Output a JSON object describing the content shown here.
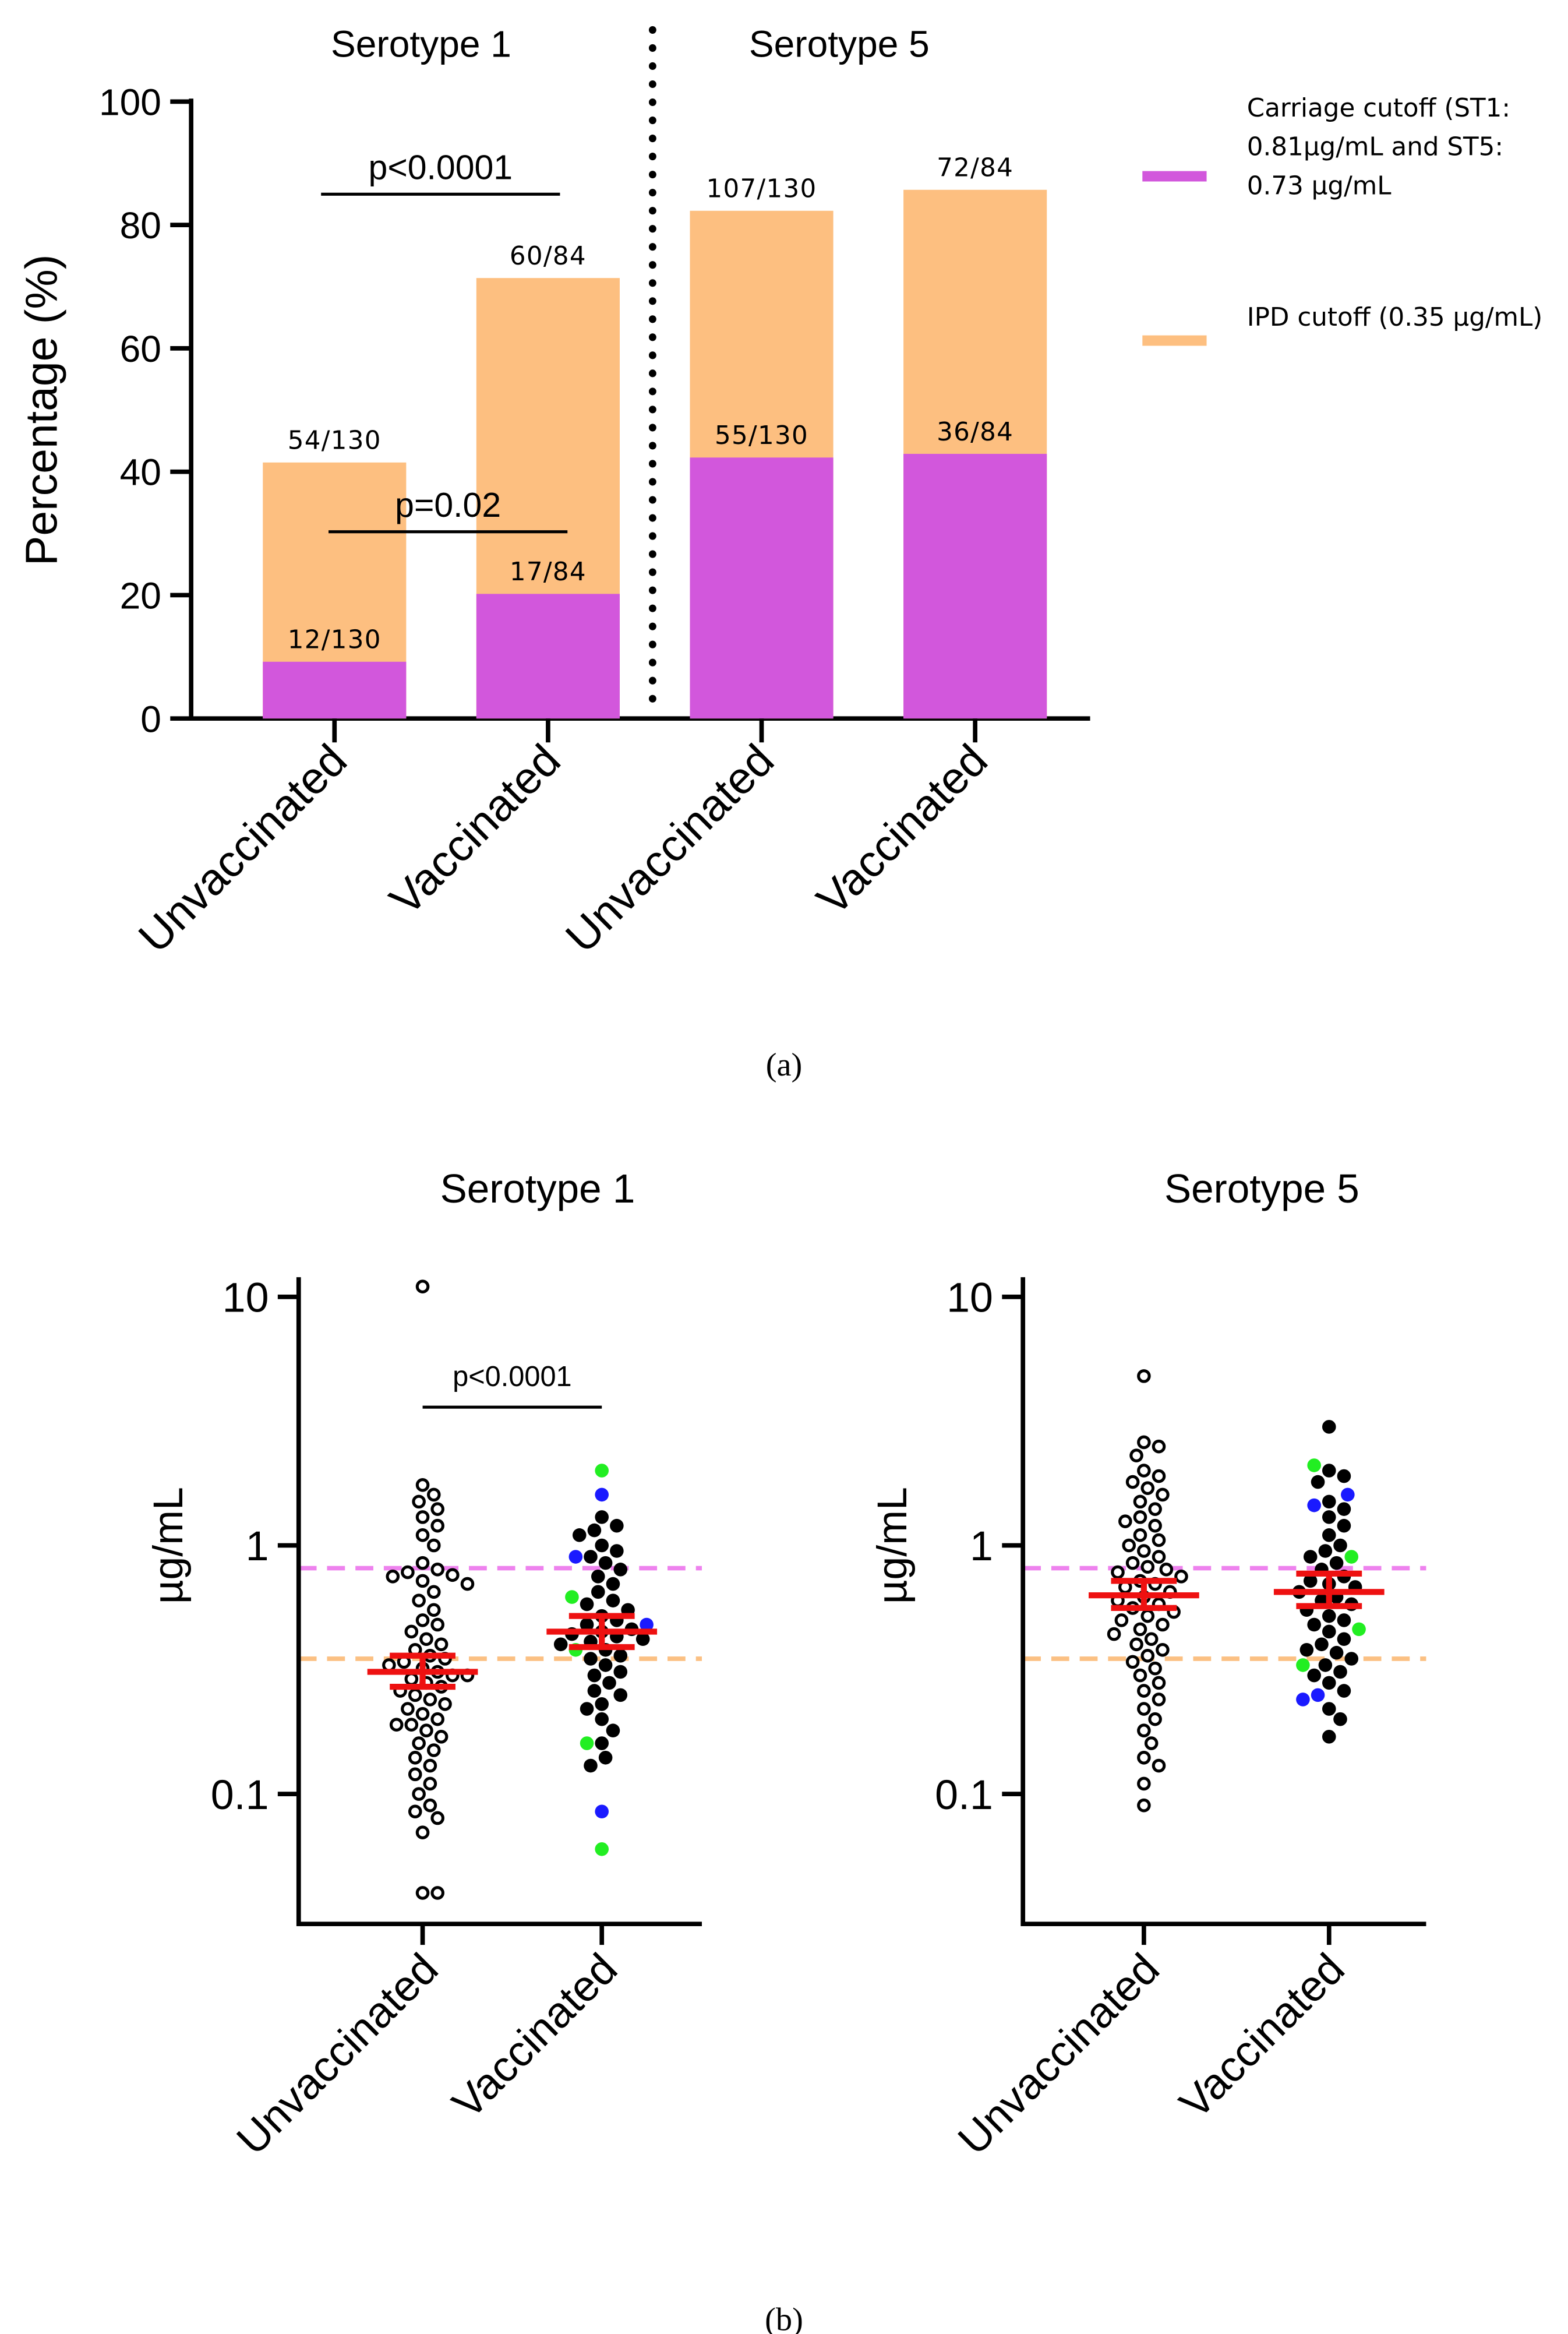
{
  "panel_labels": [
    "(a)",
    "(b)"
  ],
  "chart_data": [
    {
      "type": "bar",
      "overlap": true,
      "ylabel": "Percentage (%)",
      "ylim": [
        0,
        100
      ],
      "yticks": [
        0,
        20,
        40,
        60,
        80,
        100
      ],
      "group_labels": [
        "Serotype 1",
        "Serotype 5"
      ],
      "categories": [
        "Unvaccinated",
        "Vaccinated",
        "Unvaccinated",
        "Vaccinated"
      ],
      "series": [
        {
          "name": "Carriage cutoff (ST1: 0.81µg/mL and ST5: 0.73 µg/mL",
          "color": "#d257dc",
          "values": [
            9.2,
            20.2,
            42.3,
            42.9
          ],
          "value_labels": [
            "12/130",
            "17/84",
            "55/130",
            "36/84"
          ]
        },
        {
          "name": "IPD cutoff (0.35 µg/mL)",
          "color": "#fdbf80",
          "values": [
            41.5,
            71.4,
            82.3,
            85.7
          ],
          "value_labels": [
            "54/130",
            "60/84",
            "107/130",
            "72/84"
          ]
        }
      ],
      "annotations": [
        "p<0.0001",
        "p=0.02"
      ]
    },
    {
      "type": "dot",
      "title": "Serotype 1",
      "ylabel": "µg/mL",
      "log": true,
      "ylim": [
        0.03,
        12
      ],
      "yticks": [
        0.1,
        1,
        10
      ],
      "reference_lines": [
        {
          "value": 0.81,
          "color": "#ee82ee"
        },
        {
          "value": 0.35,
          "color": "#fbc083"
        }
      ],
      "annotations": [
        "p<0.0001"
      ],
      "groups": [
        {
          "category": "Unvaccinated",
          "mean": 0.31,
          "ci_low": 0.27,
          "ci_high": 0.36,
          "points": [
            {
              "color": "#000000",
              "hollow": true,
              "values": [
                11,
                1.75,
                1.6,
                1.5,
                1.4,
                1.3,
                1.2,
                1.1,
                1.0,
                0.85,
                0.8,
                0.78,
                0.76,
                0.75,
                0.72,
                0.7,
                0.65,
                0.6,
                0.55,
                0.5,
                0.48,
                0.45,
                0.42,
                0.4,
                0.38,
                0.36,
                0.35,
                0.34,
                0.33,
                0.32,
                0.31,
                0.3,
                0.3,
                0.29,
                0.28,
                0.27,
                0.26,
                0.25,
                0.24,
                0.23,
                0.22,
                0.21,
                0.2,
                0.19,
                0.19,
                0.18,
                0.17,
                0.16,
                0.15,
                0.14,
                0.13,
                0.12,
                0.11,
                0.1,
                0.09,
                0.085,
                0.08,
                0.07,
                0.04,
                0.04
              ]
            }
          ]
        },
        {
          "category": "Vaccinated",
          "mean": 0.45,
          "ci_low": 0.39,
          "ci_high": 0.52,
          "points": [
            {
              "color": "#000000",
              "hollow": false,
              "values": [
                1.3,
                1.2,
                1.15,
                1.1,
                1.0,
                0.95,
                0.9,
                0.85,
                0.8,
                0.75,
                0.7,
                0.65,
                0.6,
                0.58,
                0.55,
                0.52,
                0.5,
                0.48,
                0.46,
                0.45,
                0.44,
                0.43,
                0.42,
                0.41,
                0.4,
                0.38,
                0.36,
                0.35,
                0.33,
                0.31,
                0.3,
                0.28,
                0.26,
                0.25,
                0.23,
                0.22,
                0.2,
                0.18,
                0.16,
                0.14,
                0.13
              ]
            },
            {
              "color": "#1a1aff",
              "hollow": false,
              "values": [
                1.6,
                0.9,
                0.48,
                0.085
              ]
            },
            {
              "color": "#22ee22",
              "hollow": false,
              "values": [
                2.0,
                0.62,
                0.38,
                0.16,
                0.06
              ]
            }
          ]
        }
      ]
    },
    {
      "type": "dot",
      "title": "Serotype 5",
      "ylabel": "µg/mL",
      "log": true,
      "ylim": [
        0.03,
        12
      ],
      "yticks": [
        0.1,
        1,
        10
      ],
      "reference_lines": [
        {
          "value": 0.81,
          "color": "#ee82ee"
        },
        {
          "value": 0.35,
          "color": "#fbc083"
        }
      ],
      "groups": [
        {
          "category": "Unvaccinated",
          "mean": 0.63,
          "ci_low": 0.56,
          "ci_high": 0.72,
          "points": [
            {
              "color": "#000000",
              "hollow": true,
              "values": [
                4.8,
                2.6,
                2.5,
                2.3,
                2.0,
                1.9,
                1.8,
                1.7,
                1.6,
                1.5,
                1.4,
                1.3,
                1.25,
                1.2,
                1.1,
                1.05,
                1.0,
                0.95,
                0.9,
                0.85,
                0.82,
                0.8,
                0.78,
                0.75,
                0.72,
                0.7,
                0.68,
                0.65,
                0.62,
                0.6,
                0.58,
                0.56,
                0.54,
                0.52,
                0.5,
                0.48,
                0.46,
                0.44,
                0.42,
                0.4,
                0.38,
                0.36,
                0.34,
                0.32,
                0.3,
                0.28,
                0.26,
                0.24,
                0.22,
                0.2,
                0.18,
                0.16,
                0.14,
                0.13,
                0.11,
                0.09
              ]
            }
          ]
        },
        {
          "category": "Vaccinated",
          "mean": 0.65,
          "ci_low": 0.57,
          "ci_high": 0.77,
          "points": [
            {
              "color": "#000000",
              "hollow": false,
              "values": [
                3.0,
                2.0,
                1.9,
                1.8,
                1.5,
                1.4,
                1.3,
                1.2,
                1.1,
                1.0,
                0.95,
                0.9,
                0.85,
                0.8,
                0.75,
                0.72,
                0.7,
                0.68,
                0.65,
                0.62,
                0.6,
                0.58,
                0.55,
                0.52,
                0.5,
                0.48,
                0.45,
                0.42,
                0.4,
                0.38,
                0.37,
                0.35,
                0.33,
                0.31,
                0.3,
                0.28,
                0.26,
                0.22,
                0.2,
                0.17
              ]
            },
            {
              "color": "#1a1aff",
              "hollow": false,
              "values": [
                1.6,
                1.45,
                0.25,
                0.24
              ]
            },
            {
              "color": "#22ee22",
              "hollow": false,
              "values": [
                2.1,
                0.9,
                0.46,
                0.33
              ]
            }
          ]
        }
      ]
    }
  ]
}
